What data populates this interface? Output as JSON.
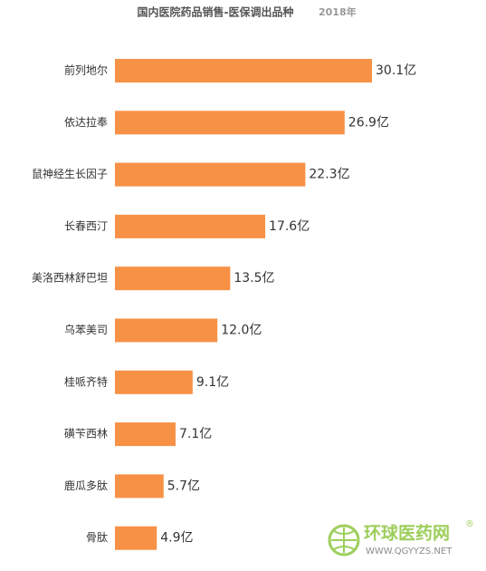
{
  "chart_data": {
    "type": "bar",
    "orientation": "horizontal",
    "title": "国内医院药品销售-医保调出品种",
    "subtitle": "2018年",
    "categories": [
      "前列地尔",
      "依达拉奉",
      "鼠神经生长因子",
      "长春西汀",
      "美洛西林舒巴坦",
      "乌苯美司",
      "桂哌齐特",
      "磺苄西林",
      "鹿瓜多肽",
      "骨肽"
    ],
    "values": [
      30.1,
      26.9,
      22.3,
      17.6,
      13.5,
      12.0,
      9.1,
      7.1,
      5.7,
      4.9
    ],
    "value_labels": [
      "30.1亿",
      "26.9亿",
      "22.3亿",
      "17.6亿",
      "13.5亿",
      "12.0亿",
      "9.1亿",
      "7.1亿",
      "5.7亿",
      "4.9亿"
    ],
    "color": "#f79146"
  },
  "watermark": {
    "brand": "环球医药网",
    "mark": "®",
    "url": "WWW.QGYYZS.NET"
  }
}
